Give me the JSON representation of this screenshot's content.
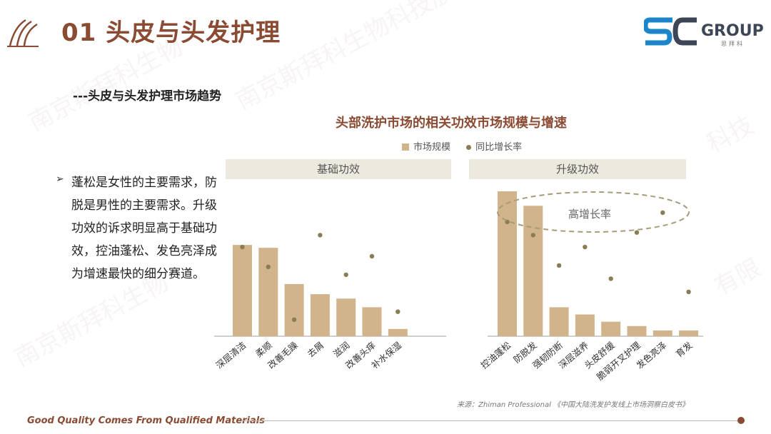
{
  "header": {
    "title": "01 头皮与头发护理",
    "brand": "GROUP",
    "brand_sub": "思拜科"
  },
  "section": {
    "subtitle": "---头皮与头发护理市场趋势"
  },
  "bullet": {
    "text": "蓬松是女性的主要需求，防脱是男性的主要需求。升级功效的诉求明显高于基础功效，控油蓬松、发色亮泽成为增速最快的细分赛道。"
  },
  "footer": {
    "slogan": "Good Quality Comes From Qualified Materials",
    "source": "来源：Zhiman Professional 《中国大陆洗发护发线上市场洞察白皮书》"
  },
  "watermarks": [
    "南京斯拜科生物",
    "南京斯拜科生物科技股份有限公司",
    "科技",
    "有限"
  ],
  "colors": {
    "accent": "#8b4a32",
    "bar": "#d1b48c",
    "dot": "#8a7d55",
    "group_bg": "#eceadf"
  },
  "chart_data": {
    "type": "bar",
    "title": "头部洗护市场的相关功效市场规模与增速",
    "legend": [
      "市场规模",
      "同比增长率"
    ],
    "legend_position": "top",
    "grid": false,
    "axes_visible": false,
    "groups": [
      {
        "label": "基础功效",
        "categories": [
          "深层清洁",
          "柔顺",
          "改善毛躁",
          "去屑",
          "滋润",
          "改善头痒",
          "补水保湿"
        ]
      },
      {
        "label": "升级功效",
        "categories": [
          "控油蓬松",
          "防脱发",
          "强韧防断",
          "深层滋养",
          "头皮舒缓",
          "脆弱开叉护理",
          "发色亮泽",
          "育发"
        ]
      }
    ],
    "series": [
      {
        "name": "市场规模",
        "type": "bar",
        "values": [
          63,
          61,
          36,
          29,
          26,
          20,
          5,
          100,
          90,
          20,
          15,
          10,
          7,
          4,
          4
        ]
      },
      {
        "name": "同比增长率",
        "type": "dot",
        "values": [
          67,
          52,
          12,
          76,
          46,
          60,
          18,
          86,
          76,
          53,
          67,
          43,
          78,
          93,
          33
        ]
      }
    ],
    "ylim": [
      0,
      100
    ],
    "annotation": "高增长率"
  }
}
